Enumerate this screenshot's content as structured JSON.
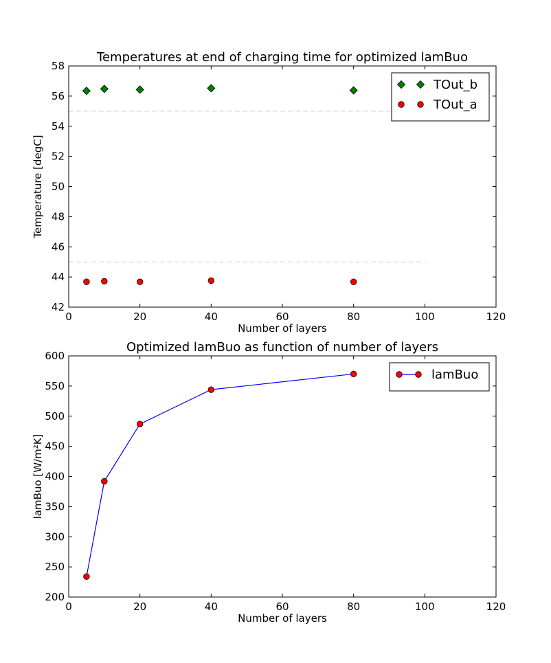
{
  "chart_data": [
    {
      "type": "scatter",
      "title": "Temperatures at end of charging time for optimized lamBuo",
      "xlabel": "Number of layers",
      "ylabel": "Temperature [degC]",
      "xlim": [
        0,
        120
      ],
      "ylim": [
        42,
        58
      ],
      "xticks": [
        "0",
        "20",
        "40",
        "60",
        "80",
        "100",
        "120"
      ],
      "yticks": [
        "42",
        "44",
        "46",
        "48",
        "50",
        "52",
        "54",
        "56",
        "58"
      ],
      "grid": false,
      "legend_position": "top-right",
      "series": [
        {
          "name": "TOut_b",
          "marker": "diamond",
          "color": "#008000",
          "x": [
            5,
            10,
            20,
            40,
            80
          ],
          "y": [
            56.35,
            56.48,
            56.43,
            56.52,
            56.38
          ]
        },
        {
          "name": "TOut_a",
          "marker": "circle",
          "color": "#ff0000",
          "x": [
            5,
            10,
            20,
            40,
            80
          ],
          "y": [
            43.68,
            43.72,
            43.68,
            43.76,
            43.68
          ]
        }
      ],
      "reference_lines": [
        {
          "y": 55,
          "x_range": [
            0,
            100
          ],
          "style": "dashed",
          "color": "#cccccc"
        },
        {
          "y": 45,
          "x_range": [
            0,
            100
          ],
          "style": "dashed",
          "color": "#cccccc"
        }
      ]
    },
    {
      "type": "line",
      "title": "Optimized lamBuo as function of number of layers",
      "xlabel": "Number of layers",
      "ylabel": "lamBuo [W/m²K]",
      "xlim": [
        0,
        120
      ],
      "ylim": [
        200,
        600
      ],
      "xticks": [
        "0",
        "20",
        "40",
        "60",
        "80",
        "100",
        "120"
      ],
      "yticks": [
        "200",
        "250",
        "300",
        "350",
        "400",
        "450",
        "500",
        "550",
        "600"
      ],
      "grid": false,
      "legend_position": "top-right",
      "series": [
        {
          "name": "lamBuo",
          "marker": "circle",
          "line_color": "#0000ff",
          "marker_color": "#ff0000",
          "x": [
            5,
            10,
            20,
            40,
            80
          ],
          "y": [
            234,
            392,
            487,
            544,
            570
          ]
        }
      ]
    }
  ]
}
